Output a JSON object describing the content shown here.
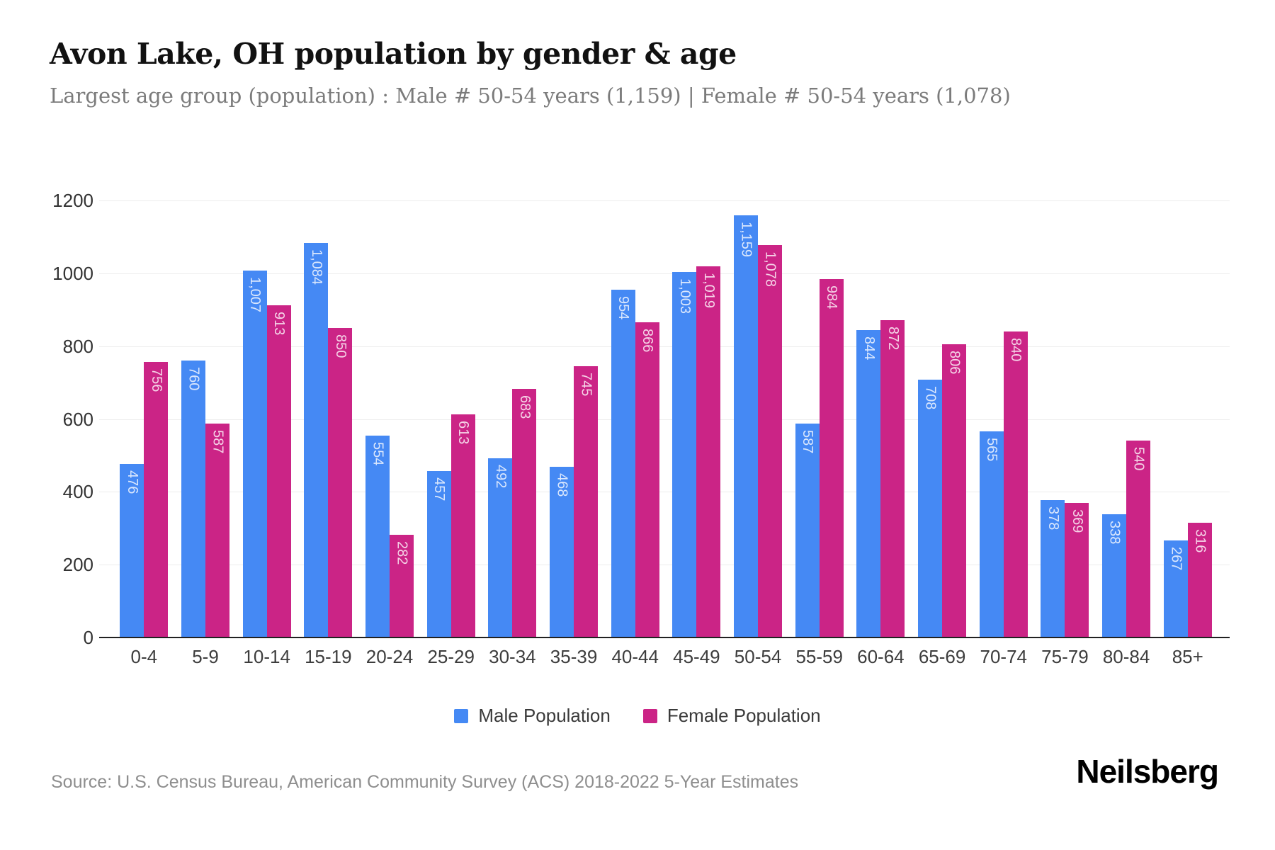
{
  "header": {
    "title": "Avon Lake, OH population by gender & age",
    "subtitle": "Largest age group (population) : Male # 50-54 years (1,159) | Female # 50-54 years (1,078)"
  },
  "chart_data": {
    "type": "bar",
    "title": "Avon Lake, OH population by gender & age",
    "categories": [
      "0-4",
      "5-9",
      "10-14",
      "15-19",
      "20-24",
      "25-29",
      "30-34",
      "35-39",
      "40-44",
      "45-49",
      "50-54",
      "55-59",
      "60-64",
      "65-69",
      "70-74",
      "75-79",
      "80-84",
      "85+"
    ],
    "series": [
      {
        "name": "Male Population",
        "color": "#4589F4",
        "values": [
          476,
          760,
          1007,
          1084,
          554,
          457,
          492,
          468,
          954,
          1003,
          1159,
          587,
          844,
          708,
          565,
          378,
          338,
          267
        ]
      },
      {
        "name": "Female Population",
        "color": "#CB2486",
        "values": [
          756,
          587,
          913,
          850,
          282,
          613,
          683,
          745,
          866,
          1019,
          1078,
          984,
          872,
          806,
          840,
          369,
          540,
          316
        ]
      }
    ],
    "xlabel": "",
    "ylabel": "",
    "ylim": [
      0,
      1200
    ],
    "yticks": [
      0,
      200,
      400,
      600,
      800,
      1000,
      1200
    ],
    "grid": true,
    "legend_position": "bottom",
    "bar_value_labels": "shown inside top of bars, rotated vertical, white"
  },
  "footer": {
    "source": "Source: U.S. Census Bureau, American Community Survey (ACS) 2018-2022 5-Year Estimates",
    "brand": "Neilsberg"
  }
}
